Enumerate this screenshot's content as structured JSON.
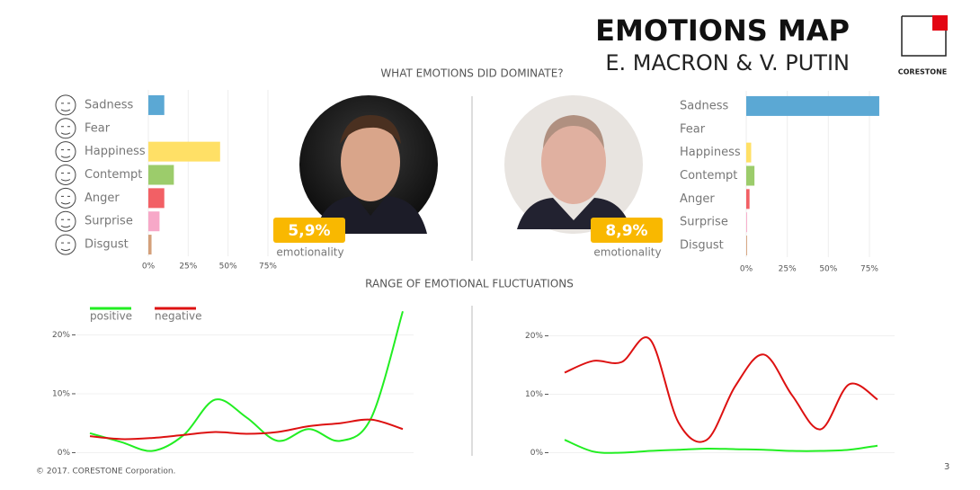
{
  "header": {
    "title": "EMOTIONS MAP",
    "subtitle": "E. MACRON & V. PUTIN",
    "logo": "CORESTONE",
    "page": "3",
    "footer": "© 2017. CORESTONE Corporation."
  },
  "sections": [
    "WHAT EMOTIONS DID DOMINATE?",
    "RANGE OF EMOTIONAL FLUCTUATIONS"
  ],
  "badges": [
    {
      "value": "5,9%",
      "label": "emotionality"
    },
    {
      "value": "8,9%",
      "label": "emotionality"
    }
  ],
  "chart_data": [
    {
      "type": "bar",
      "orientation": "horizontal",
      "categories": [
        "Sadness",
        "Fear",
        "Happiness",
        "Contempt",
        "Anger",
        "Surprise",
        "Disgust"
      ],
      "values": [
        10,
        0,
        45,
        16,
        10,
        7,
        2
      ],
      "colors": [
        "#5ba8d4",
        "#cccccc",
        "#ffe066",
        "#9ccc6b",
        "#f26065",
        "#f7a8c8",
        "#d4a07a"
      ],
      "xlim": [
        0,
        75
      ],
      "xticks": [
        {
          "value": 0,
          "label": "0%"
        },
        {
          "value": 25,
          "label": "25%"
        },
        {
          "value": 50,
          "label": "50%"
        },
        {
          "value": 75,
          "label": "75%"
        }
      ],
      "grid": true
    },
    {
      "type": "bar",
      "orientation": "horizontal",
      "categories": [
        "Sadness",
        "Fear",
        "Happiness",
        "Contempt",
        "Anger",
        "Surprise",
        "Disgust"
      ],
      "values": [
        81,
        0,
        3,
        5,
        2,
        0.5,
        0.5
      ],
      "colors": [
        "#5ba8d4",
        "#cccccc",
        "#ffe066",
        "#9ccc6b",
        "#f26065",
        "#f7a8c8",
        "#d4a07a"
      ],
      "xlim": [
        0,
        75
      ],
      "xticks": [
        {
          "value": 0,
          "label": "0%"
        },
        {
          "value": 25,
          "label": "25%"
        },
        {
          "value": 50,
          "label": "50%"
        },
        {
          "value": 75,
          "label": "75%"
        }
      ],
      "grid": true
    },
    {
      "type": "line",
      "x": [
        0,
        1,
        2,
        3,
        4,
        5,
        6,
        7,
        8,
        9,
        10
      ],
      "xlim": [
        0,
        10
      ],
      "series": [
        {
          "name": "positive",
          "color": "#22ee22",
          "values": [
            3.3,
            1.8,
            0.3,
            3,
            9,
            6,
            2,
            4,
            2,
            6,
            24
          ]
        },
        {
          "name": "negative",
          "color": "#dd1111",
          "values": [
            2.8,
            2.3,
            2.5,
            3,
            3.5,
            3.2,
            3.5,
            4.5,
            5,
            5.6,
            4
          ]
        }
      ],
      "ylim": [
        -1,
        24.5
      ],
      "yticks": [
        {
          "value": 0,
          "label": "0%"
        },
        {
          "value": 10,
          "label": "10%"
        },
        {
          "value": 20,
          "label": "20%"
        }
      ],
      "grid": true,
      "legend": "top-left"
    },
    {
      "type": "line",
      "x": [
        0,
        1,
        2,
        3,
        4,
        5,
        6,
        7,
        8,
        9,
        10,
        11
      ],
      "xlim": [
        0,
        11
      ],
      "series": [
        {
          "color": "#dd1111",
          "values": [
            13.7,
            15.7,
            15.5,
            19.4,
            5.2,
            2.2,
            11.4,
            16.8,
            9.8,
            4,
            11.7,
            9.1
          ]
        },
        {
          "color": "#22ee22",
          "values": [
            2.2,
            0.2,
            0,
            0.3,
            0.5,
            0.7,
            0.6,
            0.5,
            0.3,
            0.3,
            0.5,
            1.2
          ]
        }
      ],
      "ylim": [
        -1,
        22
      ],
      "yticks": [
        {
          "value": 0,
          "label": "0%"
        },
        {
          "value": 10,
          "label": "10%"
        },
        {
          "value": 20,
          "label": "20%"
        }
      ],
      "grid": true
    }
  ]
}
